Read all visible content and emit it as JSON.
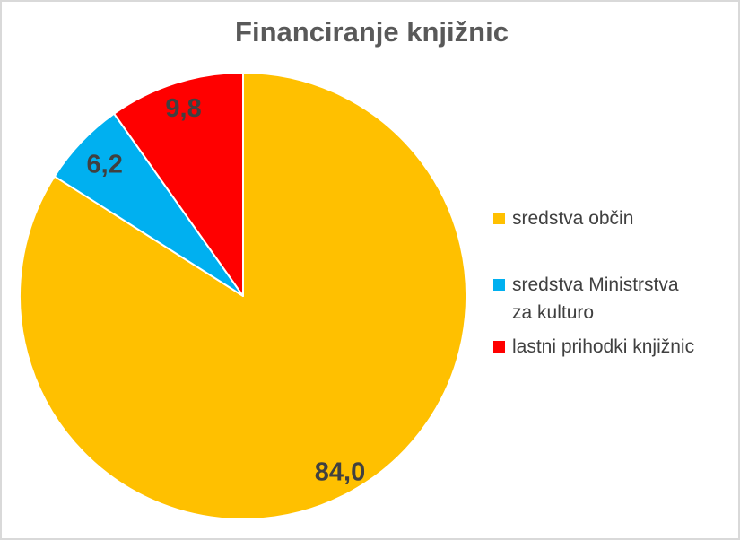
{
  "page": {
    "background_color": "#FFFFFF",
    "border_color": "#D9D9D9"
  },
  "chart_data": {
    "type": "pie",
    "title": "Financiranje knjižnic",
    "title_color": "#595959",
    "data_label_color": "#404040",
    "legend_text_color": "#404040",
    "legend_position": "right",
    "data_labels_position": "inside",
    "direction": "clockwise",
    "start_angle_deg": 0,
    "grid": false,
    "slices": [
      {
        "name": "sredstva občin",
        "value": 84.0,
        "display_value": "84,0",
        "color": "#FFC000",
        "legend_lines": [
          "sredstva občin"
        ]
      },
      {
        "name": "sredstva Ministrstva za kulturo",
        "value": 6.2,
        "display_value": "6,2",
        "color": "#00B0F0",
        "legend_lines": [
          "sredstva Ministrstva",
          "za kulturo"
        ]
      },
      {
        "name": "lastni prihodki knjižnic",
        "value": 9.8,
        "display_value": "9,8",
        "color": "#FF0000",
        "legend_lines": [
          "lastni prihodki knjižnic"
        ]
      }
    ]
  }
}
